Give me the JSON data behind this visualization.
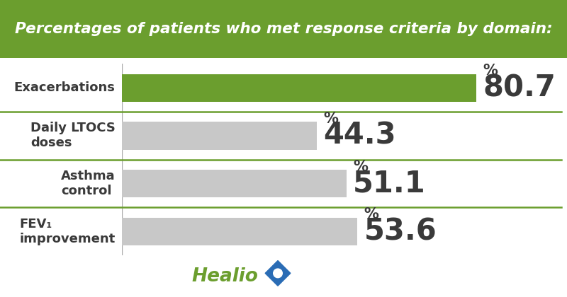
{
  "title": "Percentages of patients who met response criteria by domain:",
  "title_bg_color": "#6b9e2e",
  "title_text_color": "#ffffff",
  "background_color": "#ffffff",
  "categories": [
    "Exacerbations",
    "Daily LTOCS\ndoses",
    "Asthma\ncontrol",
    "FEV₁\nimprovement"
  ],
  "values": [
    80.7,
    44.3,
    51.1,
    53.6
  ],
  "bar_colors": [
    "#6b9e2e",
    "#c8c8c8",
    "#c8c8c8",
    "#c8c8c8"
  ],
  "value_nums": [
    "80.7",
    "44.3",
    "51.1",
    "53.6"
  ],
  "value_color": "#3a3a3a",
  "label_color": "#3a3a3a",
  "divider_color": "#6b9e2e",
  "xlim": [
    0,
    100
  ],
  "bar_height": 0.58,
  "healio_text_color": "#6b9e2e",
  "healio_star_color": "#2a6cb5",
  "percent_fontsize": 15,
  "value_fontsize": 30,
  "label_fontsize": 13,
  "title_fontsize": 15.5
}
